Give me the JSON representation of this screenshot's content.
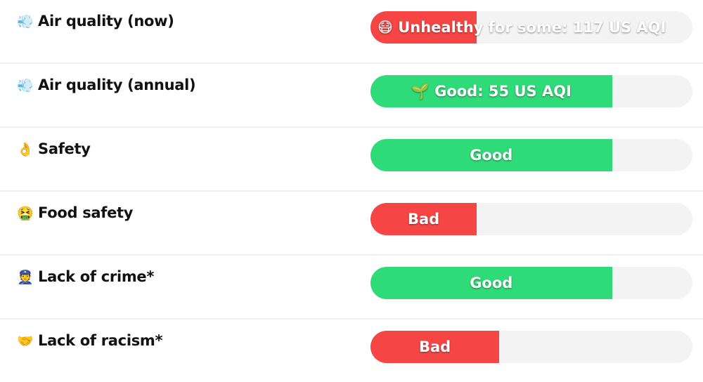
{
  "colors": {
    "good": "#2fdb78",
    "bad": "#f64545",
    "track": "#f3f3f3"
  },
  "rows": [
    {
      "icon": "💨",
      "icon_name": "dashing-away-icon",
      "label": "Air quality (now)",
      "bar_emoji": "😷",
      "bar_text": "Unhealthy for some: 117 US AQI",
      "level": "bad",
      "percent": 33,
      "align": "left"
    },
    {
      "icon": "💨",
      "icon_name": "dashing-away-icon",
      "label": "Air quality (annual)",
      "bar_emoji": "🌱",
      "bar_text": "Good: 55 US AQI",
      "level": "good",
      "percent": 75,
      "align": "centered"
    },
    {
      "icon": "👌",
      "icon_name": "ok-hand-icon",
      "label": "Safety",
      "bar_emoji": "",
      "bar_text": "Good",
      "level": "good",
      "percent": 75,
      "align": "centered"
    },
    {
      "icon": "🤮",
      "icon_name": "vomiting-face-icon",
      "label": "Food safety",
      "bar_emoji": "",
      "bar_text": "Bad",
      "level": "bad",
      "percent": 33,
      "align": "centered"
    },
    {
      "icon": "👮",
      "icon_name": "police-officer-icon",
      "label": "Lack of crime*",
      "bar_emoji": "",
      "bar_text": "Good",
      "level": "good",
      "percent": 75,
      "align": "centered"
    },
    {
      "icon": "🤝",
      "icon_name": "handshake-icon",
      "label": "Lack of racism*",
      "bar_emoji": "",
      "bar_text": "Bad",
      "level": "bad",
      "percent": 40,
      "align": "centered"
    }
  ]
}
